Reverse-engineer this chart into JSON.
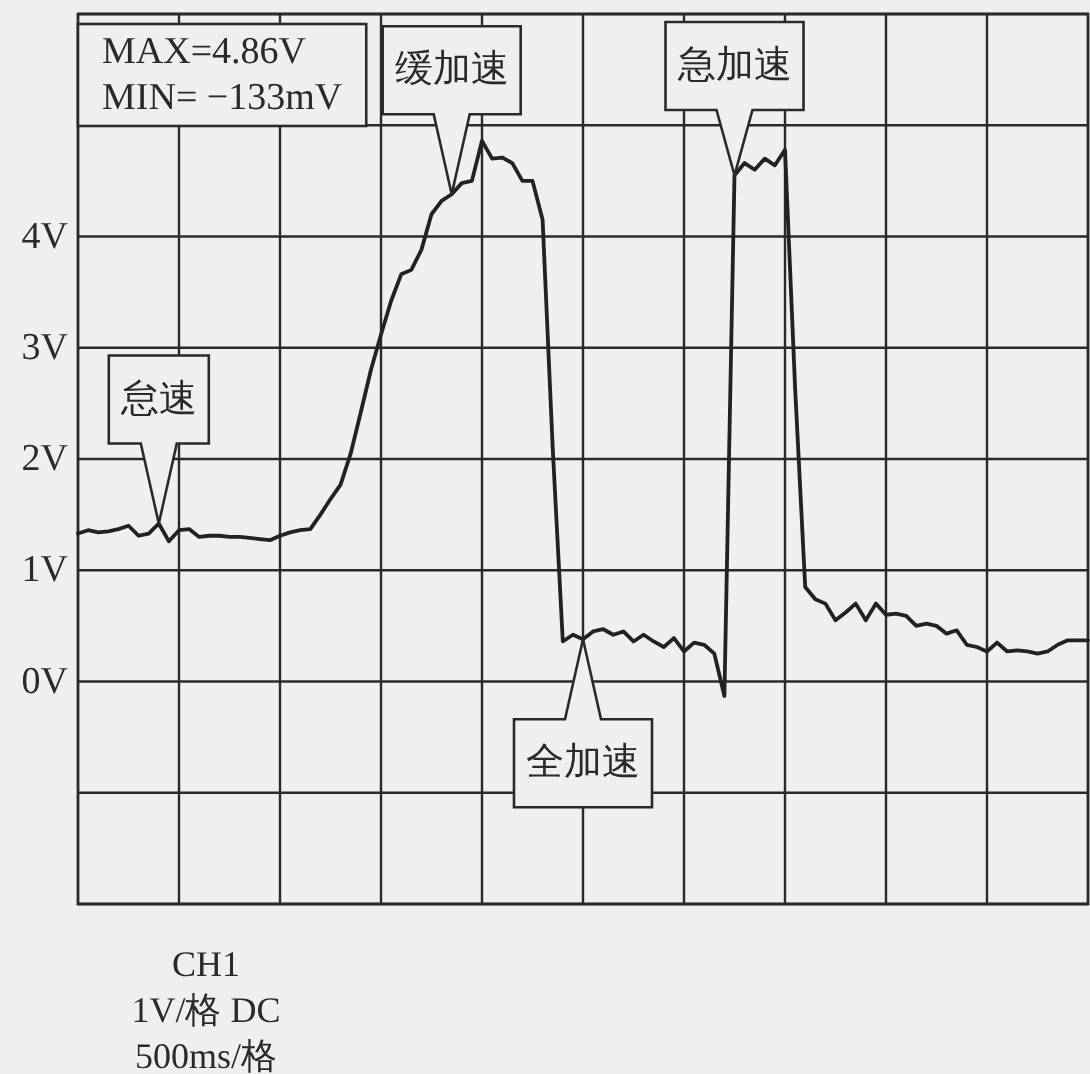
{
  "chart_data": {
    "type": "line",
    "categories": [
      null,
      null,
      null,
      null,
      null,
      null,
      null,
      null,
      null,
      null,
      null,
      null,
      null,
      null,
      null,
      null,
      null,
      null,
      null,
      null,
      null,
      null,
      null,
      null,
      null,
      null,
      null,
      null,
      null,
      null,
      null,
      null,
      null,
      null,
      null,
      null,
      null,
      null,
      null,
      null,
      null,
      null,
      null,
      null,
      null,
      null,
      null,
      null,
      null,
      null,
      null,
      null,
      null,
      null,
      null,
      null,
      null,
      null,
      null,
      null,
      null,
      null,
      null,
      null,
      null,
      null,
      null,
      null,
      null,
      null,
      null,
      null,
      null,
      null,
      null,
      null,
      null,
      null,
      null,
      null,
      null,
      null,
      null,
      null,
      null,
      null,
      null,
      null,
      null,
      null,
      null,
      null,
      null,
      null,
      null,
      null,
      null,
      null,
      null,
      null,
      null
    ],
    "series": [
      {
        "color": "#222222",
        "values": [
          1.33,
          1.36,
          1.34,
          1.35,
          1.37,
          1.4,
          1.31,
          1.33,
          1.42,
          1.26,
          1.36,
          1.37,
          1.3,
          1.31,
          1.31,
          1.3,
          1.3,
          1.29,
          1.28,
          1.27,
          1.31,
          1.34,
          1.36,
          1.37,
          1.5,
          1.64,
          1.77,
          2.05,
          2.42,
          2.8,
          3.12,
          3.42,
          3.66,
          3.7,
          3.88,
          4.2,
          4.32,
          4.38,
          4.48,
          4.5,
          4.86,
          4.7,
          4.71,
          4.66,
          4.5,
          4.5,
          4.15,
          2.1,
          0.36,
          0.42,
          0.38,
          0.45,
          0.47,
          0.42,
          0.45,
          0.36,
          0.42,
          0.36,
          0.31,
          0.39,
          0.27,
          0.35,
          0.33,
          0.25,
          -0.13,
          4.55,
          4.66,
          4.6,
          4.7,
          4.64,
          4.78,
          2.64,
          0.85,
          0.74,
          0.7,
          0.55,
          0.62,
          0.7,
          0.55,
          0.7,
          0.6,
          0.61,
          0.59,
          0.5,
          0.52,
          0.5,
          0.43,
          0.46,
          0.33,
          0.31,
          0.27,
          0.35,
          0.27,
          0.28,
          0.27,
          0.25,
          0.27,
          0.33,
          0.37,
          0.37,
          0.37
        ]
      }
    ],
    "ylim": [
      -2,
      6
    ],
    "yticks": [
      {
        "value": -2,
        "label": null
      },
      {
        "value": -1,
        "label": null
      },
      {
        "value": 0,
        "label": "0V"
      },
      {
        "value": 1,
        "label": "1V"
      },
      {
        "value": 2,
        "label": "2V"
      },
      {
        "value": 3,
        "label": "3V"
      },
      {
        "value": 4,
        "label": "4V"
      },
      {
        "value": 5,
        "label": null
      },
      {
        "value": 6,
        "label": null
      }
    ],
    "tick_labels": "y",
    "grid": true,
    "annotations": [
      "MAX=4.86V\nMIN= −133mV",
      {
        "text": "怠速",
        "y": 1.42
      },
      {
        "text": "缓加速",
        "y": 4.38
      },
      {
        "text": "全加速",
        "y": 0.38
      },
      {
        "text": "急加速",
        "y": 4.55
      },
      "CH1\n1V/格 DC\n500ms/格"
    ]
  }
}
